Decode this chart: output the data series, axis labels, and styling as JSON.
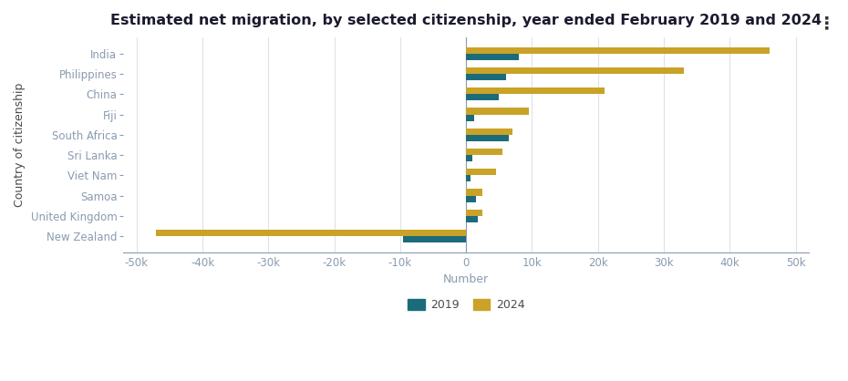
{
  "title": "Estimated net migration, by selected citizenship, year ended February 2019 and 2024",
  "xlabel": "Number",
  "ylabel": "Country of citizenship",
  "categories": [
    "India",
    "Philippines",
    "China",
    "Fiji",
    "South Africa",
    "Sri Lanka",
    "Viet Nam",
    "Samoa",
    "United Kingdom",
    "New Zealand"
  ],
  "values_2019": [
    8000,
    6000,
    5000,
    1200,
    6500,
    1000,
    700,
    1500,
    1800,
    -9500
  ],
  "values_2024": [
    46000,
    33000,
    21000,
    9500,
    7000,
    5500,
    4500,
    2500,
    2500,
    -47000
  ],
  "color_2019": "#1b6c7b",
  "color_2024": "#c9a227",
  "background_color": "#ffffff",
  "grid_color": "#dde3ec",
  "tick_color": "#8a9bb0",
  "label_color": "#4a4a4a",
  "title_color": "#1a1a2e",
  "xlim": [
    -52000,
    52000
  ],
  "bar_height": 0.32,
  "legend_2019": "2019",
  "legend_2024": "2024",
  "title_fontsize": 11.5,
  "axis_label_fontsize": 9,
  "tick_fontsize": 8.5,
  "legend_fontsize": 9,
  "xticks": [
    -50000,
    -40000,
    -30000,
    -20000,
    -10000,
    0,
    10000,
    20000,
    30000,
    40000,
    50000
  ]
}
